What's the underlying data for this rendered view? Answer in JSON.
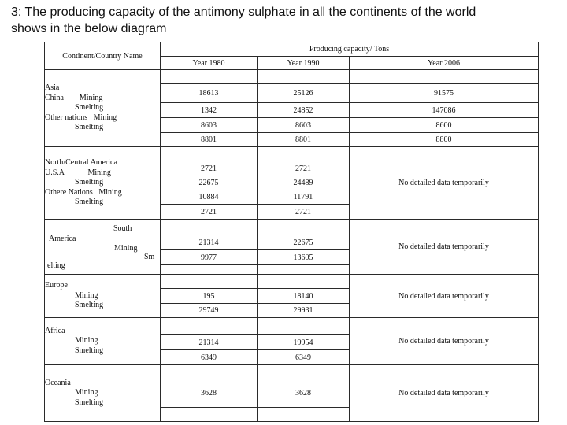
{
  "title": {
    "line1": "3: The producing capacity of the antimony sulphate in all the continents of the world",
    "line2": "shows in the below diagram"
  },
  "table": {
    "header": {
      "col1": "Continent/Country Name",
      "span": "Producing capacity/ Tons",
      "years": [
        "Year 1980",
        "Year 1990",
        "Year 2006"
      ]
    },
    "no_data_label": "No detailed data temporarily",
    "sections": [
      {
        "name": "Asia",
        "lines": [
          "Asia",
          "China        Mining",
          "Smelting",
          "Other nations   Mining",
          "Smelting"
        ],
        "rows": [
          {
            "y1980": "18613",
            "y1990": "25126",
            "y2006": "91575"
          },
          {
            "y1980": "1342",
            "y1990": "24852",
            "y2006": "147086"
          },
          {
            "y1980": "8603",
            "y1990": "8603",
            "y2006": "8600"
          },
          {
            "y1980": "8801",
            "y1990": "8801",
            "y2006": "8800"
          }
        ]
      },
      {
        "name": "North/Central America",
        "lines": [
          "North/Central America",
          "U.S.A            Mining",
          "Smelting",
          "Othere Nations   Mining",
          "Smelting"
        ],
        "rows": [
          {
            "y1980": "2721",
            "y1990": "2721"
          },
          {
            "y1980": "22675",
            "y1990": "24489"
          },
          {
            "y1980": "10884",
            "y1990": "11791"
          },
          {
            "y1980": "2721",
            "y1990": "2721"
          }
        ]
      },
      {
        "name": "South America",
        "fragments": [
          "South",
          "America",
          "Mining",
          "Sm",
          "elting"
        ],
        "rows": [
          {
            "y1980": "21314",
            "y1990": "22675"
          },
          {
            "y1980": "9977",
            "y1990": "13605"
          }
        ]
      },
      {
        "name": "Europe",
        "lines": [
          "Europe",
          "Mining",
          "Smelting"
        ],
        "rows": [
          {
            "y1980": "195",
            "y1990": "18140"
          },
          {
            "y1980": "29749",
            "y1990": "29931"
          }
        ]
      },
      {
        "name": "Africa",
        "lines": [
          "Africa",
          "Mining",
          "Smelting"
        ],
        "rows": [
          {
            "y1980": "21314",
            "y1990": "19954"
          },
          {
            "y1980": "6349",
            "y1990": "6349"
          }
        ]
      },
      {
        "name": "Oceania",
        "lines": [
          "Oceania",
          "Mining",
          "Smelting"
        ],
        "rows": [
          {
            "y1980": "3628",
            "y1990": "3628"
          }
        ]
      }
    ]
  }
}
